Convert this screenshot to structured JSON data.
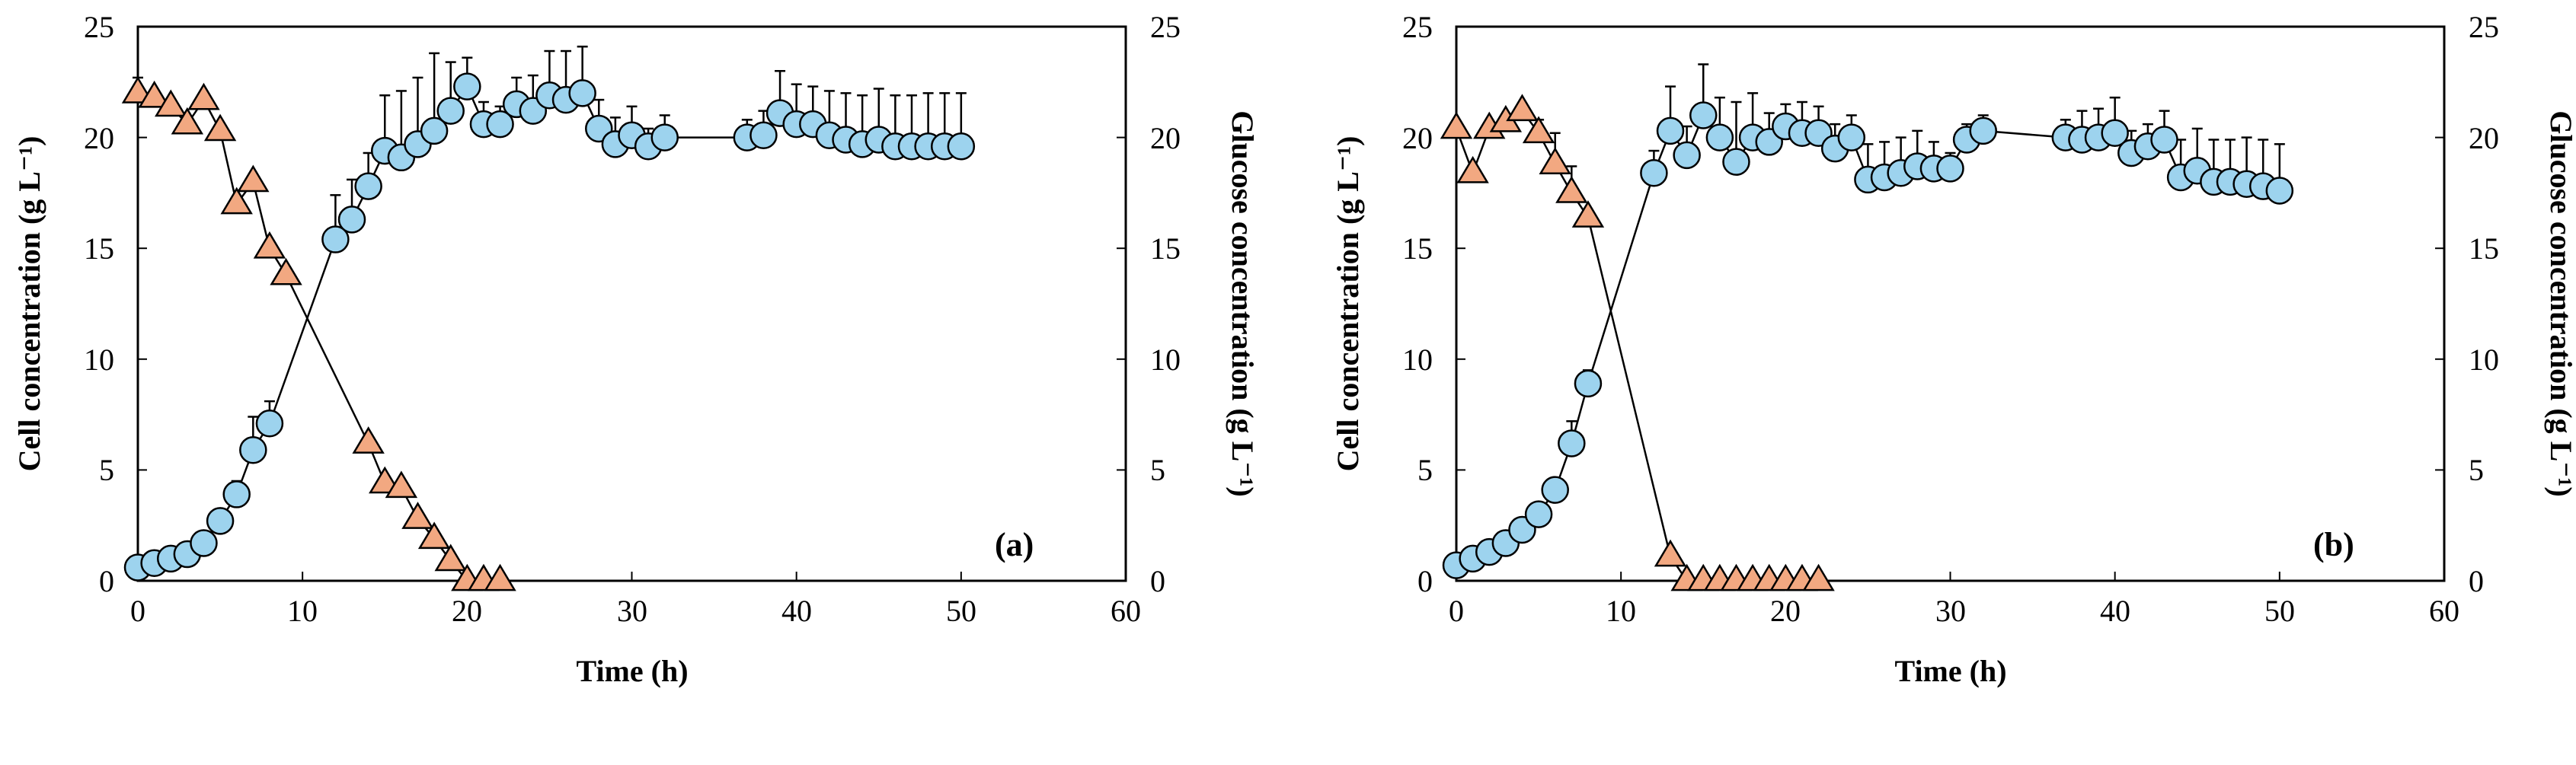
{
  "chart_data": [
    {
      "type": "scatter",
      "panel_label": "(a)",
      "xlabel": "Time (h)",
      "ylabel_left": "Cell concentration (g L⁻¹)",
      "ylabel_right": "Glucose concentration (g L⁻¹)",
      "xlim": [
        0,
        60
      ],
      "ylim_left": [
        0,
        25
      ],
      "ylim_right": [
        0,
        25
      ],
      "x_ticks": [
        "0",
        "10",
        "20",
        "30",
        "40",
        "50",
        "60"
      ],
      "y_ticks_left": [
        "0",
        "5",
        "10",
        "15",
        "20",
        "25"
      ],
      "y_ticks_right": [
        "0",
        "5",
        "10",
        "15",
        "20",
        "25"
      ],
      "colors": {
        "cell": "#9DD3EE",
        "glucose": "#F2A881",
        "line": "#000000"
      },
      "series": [
        {
          "name": "Cell concentration",
          "marker": "circle",
          "axis": "left",
          "x": [
            0,
            1,
            2,
            3,
            4,
            5,
            6,
            7,
            8,
            12,
            13,
            14,
            15,
            16,
            17,
            18,
            19,
            20,
            21,
            22,
            23,
            24,
            25,
            26,
            27,
            28,
            29,
            30,
            31,
            32,
            37,
            38,
            39,
            40,
            41,
            42,
            43,
            44,
            45,
            46,
            47,
            48,
            49,
            50
          ],
          "y": [
            0.6,
            0.8,
            1.0,
            1.2,
            1.7,
            2.7,
            3.9,
            5.9,
            7.1,
            15.4,
            16.3,
            17.8,
            19.4,
            19.1,
            19.7,
            20.3,
            21.2,
            22.3,
            20.6,
            20.6,
            21.5,
            21.2,
            21.9,
            21.7,
            22.0,
            20.4,
            19.7,
            20.1,
            19.6,
            20.0,
            20.0,
            20.1,
            21.1,
            20.6,
            20.6,
            20.1,
            19.9,
            19.7,
            19.9,
            19.6,
            19.6,
            19.6,
            19.6,
            19.6
          ],
          "error": [
            0.2,
            0.2,
            0.2,
            0.3,
            0.3,
            0.4,
            0.6,
            1.5,
            1.0,
            2.0,
            1.8,
            1.5,
            2.5,
            3.0,
            3.0,
            3.5,
            2.2,
            1.3,
            1.0,
            0.8,
            1.2,
            1.6,
            2.0,
            2.2,
            2.1,
            1.3,
            1.2,
            1.3,
            0.8,
            1.0,
            0.8,
            1.1,
            1.9,
            1.8,
            1.7,
            2.0,
            2.1,
            2.2,
            2.3,
            2.3,
            2.3,
            2.4,
            2.4,
            2.4
          ]
        },
        {
          "name": "Glucose concentration",
          "marker": "triangle",
          "axis": "right",
          "x": [
            0,
            1,
            2,
            3,
            4,
            5,
            6,
            7,
            8,
            9,
            14,
            15,
            16,
            17,
            18,
            19,
            20,
            21,
            22
          ],
          "y": [
            22.0,
            21.8,
            21.4,
            20.6,
            21.7,
            20.3,
            17.0,
            18.0,
            15.0,
            13.8,
            6.2,
            4.4,
            4.2,
            2.8,
            1.9,
            0.9,
            0.0,
            0.0,
            0.0
          ],
          "error": [
            0.7,
            0,
            0,
            0,
            0,
            0,
            0,
            0,
            0,
            0,
            0,
            0,
            0,
            0,
            0,
            0,
            0,
            0,
            0
          ]
        }
      ]
    },
    {
      "type": "scatter",
      "panel_label": "(b)",
      "xlabel": "Time (h)",
      "ylabel_left": "Cell concentration (g L⁻¹)",
      "ylabel_right": "Glucose concentration (g L⁻¹)",
      "xlim": [
        0,
        60
      ],
      "ylim_left": [
        0,
        25
      ],
      "ylim_right": [
        0,
        25
      ],
      "x_ticks": [
        "0",
        "10",
        "20",
        "30",
        "40",
        "50",
        "60"
      ],
      "y_ticks_left": [
        "0",
        "5",
        "10",
        "15",
        "20",
        "25"
      ],
      "y_ticks_right": [
        "0",
        "5",
        "10",
        "15",
        "20",
        "25"
      ],
      "colors": {
        "cell": "#9DD3EE",
        "glucose": "#F2A881",
        "line": "#000000"
      },
      "series": [
        {
          "name": "Cell concentration",
          "marker": "circle",
          "axis": "left",
          "x": [
            0,
            1,
            2,
            3,
            4,
            5,
            6,
            7,
            8,
            12,
            13,
            14,
            15,
            16,
            17,
            18,
            19,
            20,
            21,
            22,
            23,
            24,
            25,
            26,
            27,
            28,
            29,
            30,
            31,
            32,
            37,
            38,
            39,
            40,
            41,
            42,
            43,
            44,
            45,
            46,
            47,
            48,
            49,
            50
          ],
          "y": [
            0.7,
            1.0,
            1.3,
            1.7,
            2.3,
            3.0,
            4.1,
            6.2,
            8.9,
            18.4,
            20.3,
            19.2,
            21.0,
            20.0,
            18.9,
            20.0,
            19.8,
            20.5,
            20.2,
            20.2,
            19.5,
            20.0,
            18.1,
            18.2,
            18.4,
            18.7,
            18.6,
            18.6,
            19.9,
            20.3,
            20.0,
            19.9,
            20.0,
            20.2,
            19.3,
            19.6,
            19.9,
            18.2,
            18.5,
            18.0,
            18.0,
            17.9,
            17.8,
            17.6
          ],
          "error": [
            0.2,
            0.2,
            0.2,
            0.3,
            0.3,
            0.4,
            0.5,
            1.0,
            0.6,
            1.0,
            2.0,
            1.3,
            2.3,
            1.8,
            2.7,
            2.0,
            1.3,
            1.0,
            1.4,
            1.2,
            1.1,
            1.0,
            1.6,
            1.6,
            1.6,
            1.6,
            1.2,
            0.7,
            0.7,
            0.7,
            0.8,
            1.3,
            1.3,
            1.6,
            1.0,
            1.0,
            1.3,
            1.7,
            1.9,
            1.9,
            1.9,
            2.1,
            2.1,
            2.1
          ]
        },
        {
          "name": "Glucose concentration",
          "marker": "triangle",
          "axis": "right",
          "x": [
            0,
            1,
            2,
            3,
            4,
            5,
            6,
            7,
            8,
            13,
            14,
            15,
            16,
            17,
            18,
            19,
            20,
            21,
            22
          ],
          "y": [
            20.4,
            18.4,
            20.4,
            20.7,
            21.2,
            20.2,
            18.8,
            17.5,
            16.4,
            1.1,
            0.0,
            0.0,
            0.0,
            0.0,
            0.0,
            0.0,
            0.0,
            0.0,
            0.0
          ],
          "error": [
            0,
            0,
            0,
            0,
            0,
            0.6,
            1.4,
            1.2,
            0,
            0,
            0,
            0,
            0,
            0,
            0,
            0,
            0,
            0,
            0
          ]
        }
      ]
    }
  ]
}
